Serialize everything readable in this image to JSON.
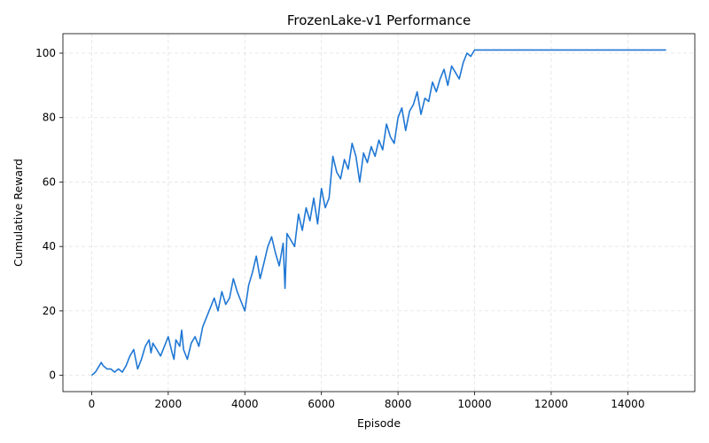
{
  "chart_data": {
    "type": "line",
    "title": "FrozenLake-v1 Performance",
    "xlabel": "Episode",
    "ylabel": "Cumulative Reward",
    "xlim": [
      -750,
      15750
    ],
    "ylim": [
      -5.05,
      106.05
    ],
    "xticks": [
      0,
      2000,
      4000,
      6000,
      8000,
      10000,
      12000,
      14000
    ],
    "yticks": [
      0,
      20,
      40,
      60,
      80,
      100
    ],
    "grid": true,
    "line_color": "#1f77d4",
    "series": [
      {
        "x": [
          0,
          100,
          200,
          250,
          300,
          400,
          500,
          600,
          700,
          800,
          900,
          1000,
          1100,
          1150,
          1200,
          1300,
          1400,
          1500,
          1550,
          1600,
          1700,
          1800,
          1900,
          2000,
          2100,
          2150,
          2200,
          2300,
          2350,
          2400,
          2500,
          2600,
          2700,
          2800,
          2900,
          3000,
          3100,
          3200,
          3300,
          3400,
          3500,
          3600,
          3700,
          3800,
          3900,
          4000,
          4100,
          4200,
          4300,
          4400,
          4500,
          4600,
          4700,
          4800,
          4900,
          5000,
          5050,
          5100,
          5200,
          5300,
          5400,
          5500,
          5600,
          5700,
          5800,
          5900,
          6000,
          6100,
          6200,
          6300,
          6400,
          6500,
          6600,
          6700,
          6800,
          6900,
          7000,
          7100,
          7200,
          7300,
          7400,
          7500,
          7600,
          7700,
          7800,
          7900,
          8000,
          8100,
          8200,
          8300,
          8400,
          8500,
          8600,
          8700,
          8800,
          8900,
          9000,
          9100,
          9200,
          9300,
          9400,
          9500,
          9600,
          9700,
          9800,
          9900,
          10000,
          12000,
          15000
        ],
        "y": [
          0,
          1,
          3,
          4,
          3,
          2,
          2,
          1,
          2,
          1,
          3,
          6,
          8,
          5,
          2,
          5,
          9,
          11,
          7,
          10,
          8,
          6,
          9,
          12,
          7,
          5,
          11,
          9,
          14,
          8,
          5,
          10,
          12,
          9,
          15,
          18,
          21,
          24,
          20,
          26,
          22,
          24,
          30,
          26,
          23,
          20,
          28,
          32,
          37,
          30,
          35,
          40,
          43,
          38,
          34,
          41,
          27,
          44,
          42,
          40,
          50,
          45,
          52,
          48,
          55,
          47,
          58,
          52,
          55,
          68,
          63,
          61,
          67,
          64,
          72,
          68,
          60,
          69,
          66,
          71,
          68,
          73,
          70,
          78,
          74,
          72,
          80,
          83,
          76,
          82,
          84,
          88,
          81,
          86,
          85,
          91,
          88,
          92,
          95,
          90,
          96,
          94,
          92,
          97,
          100,
          99,
          101,
          101,
          101
        ]
      }
    ]
  }
}
